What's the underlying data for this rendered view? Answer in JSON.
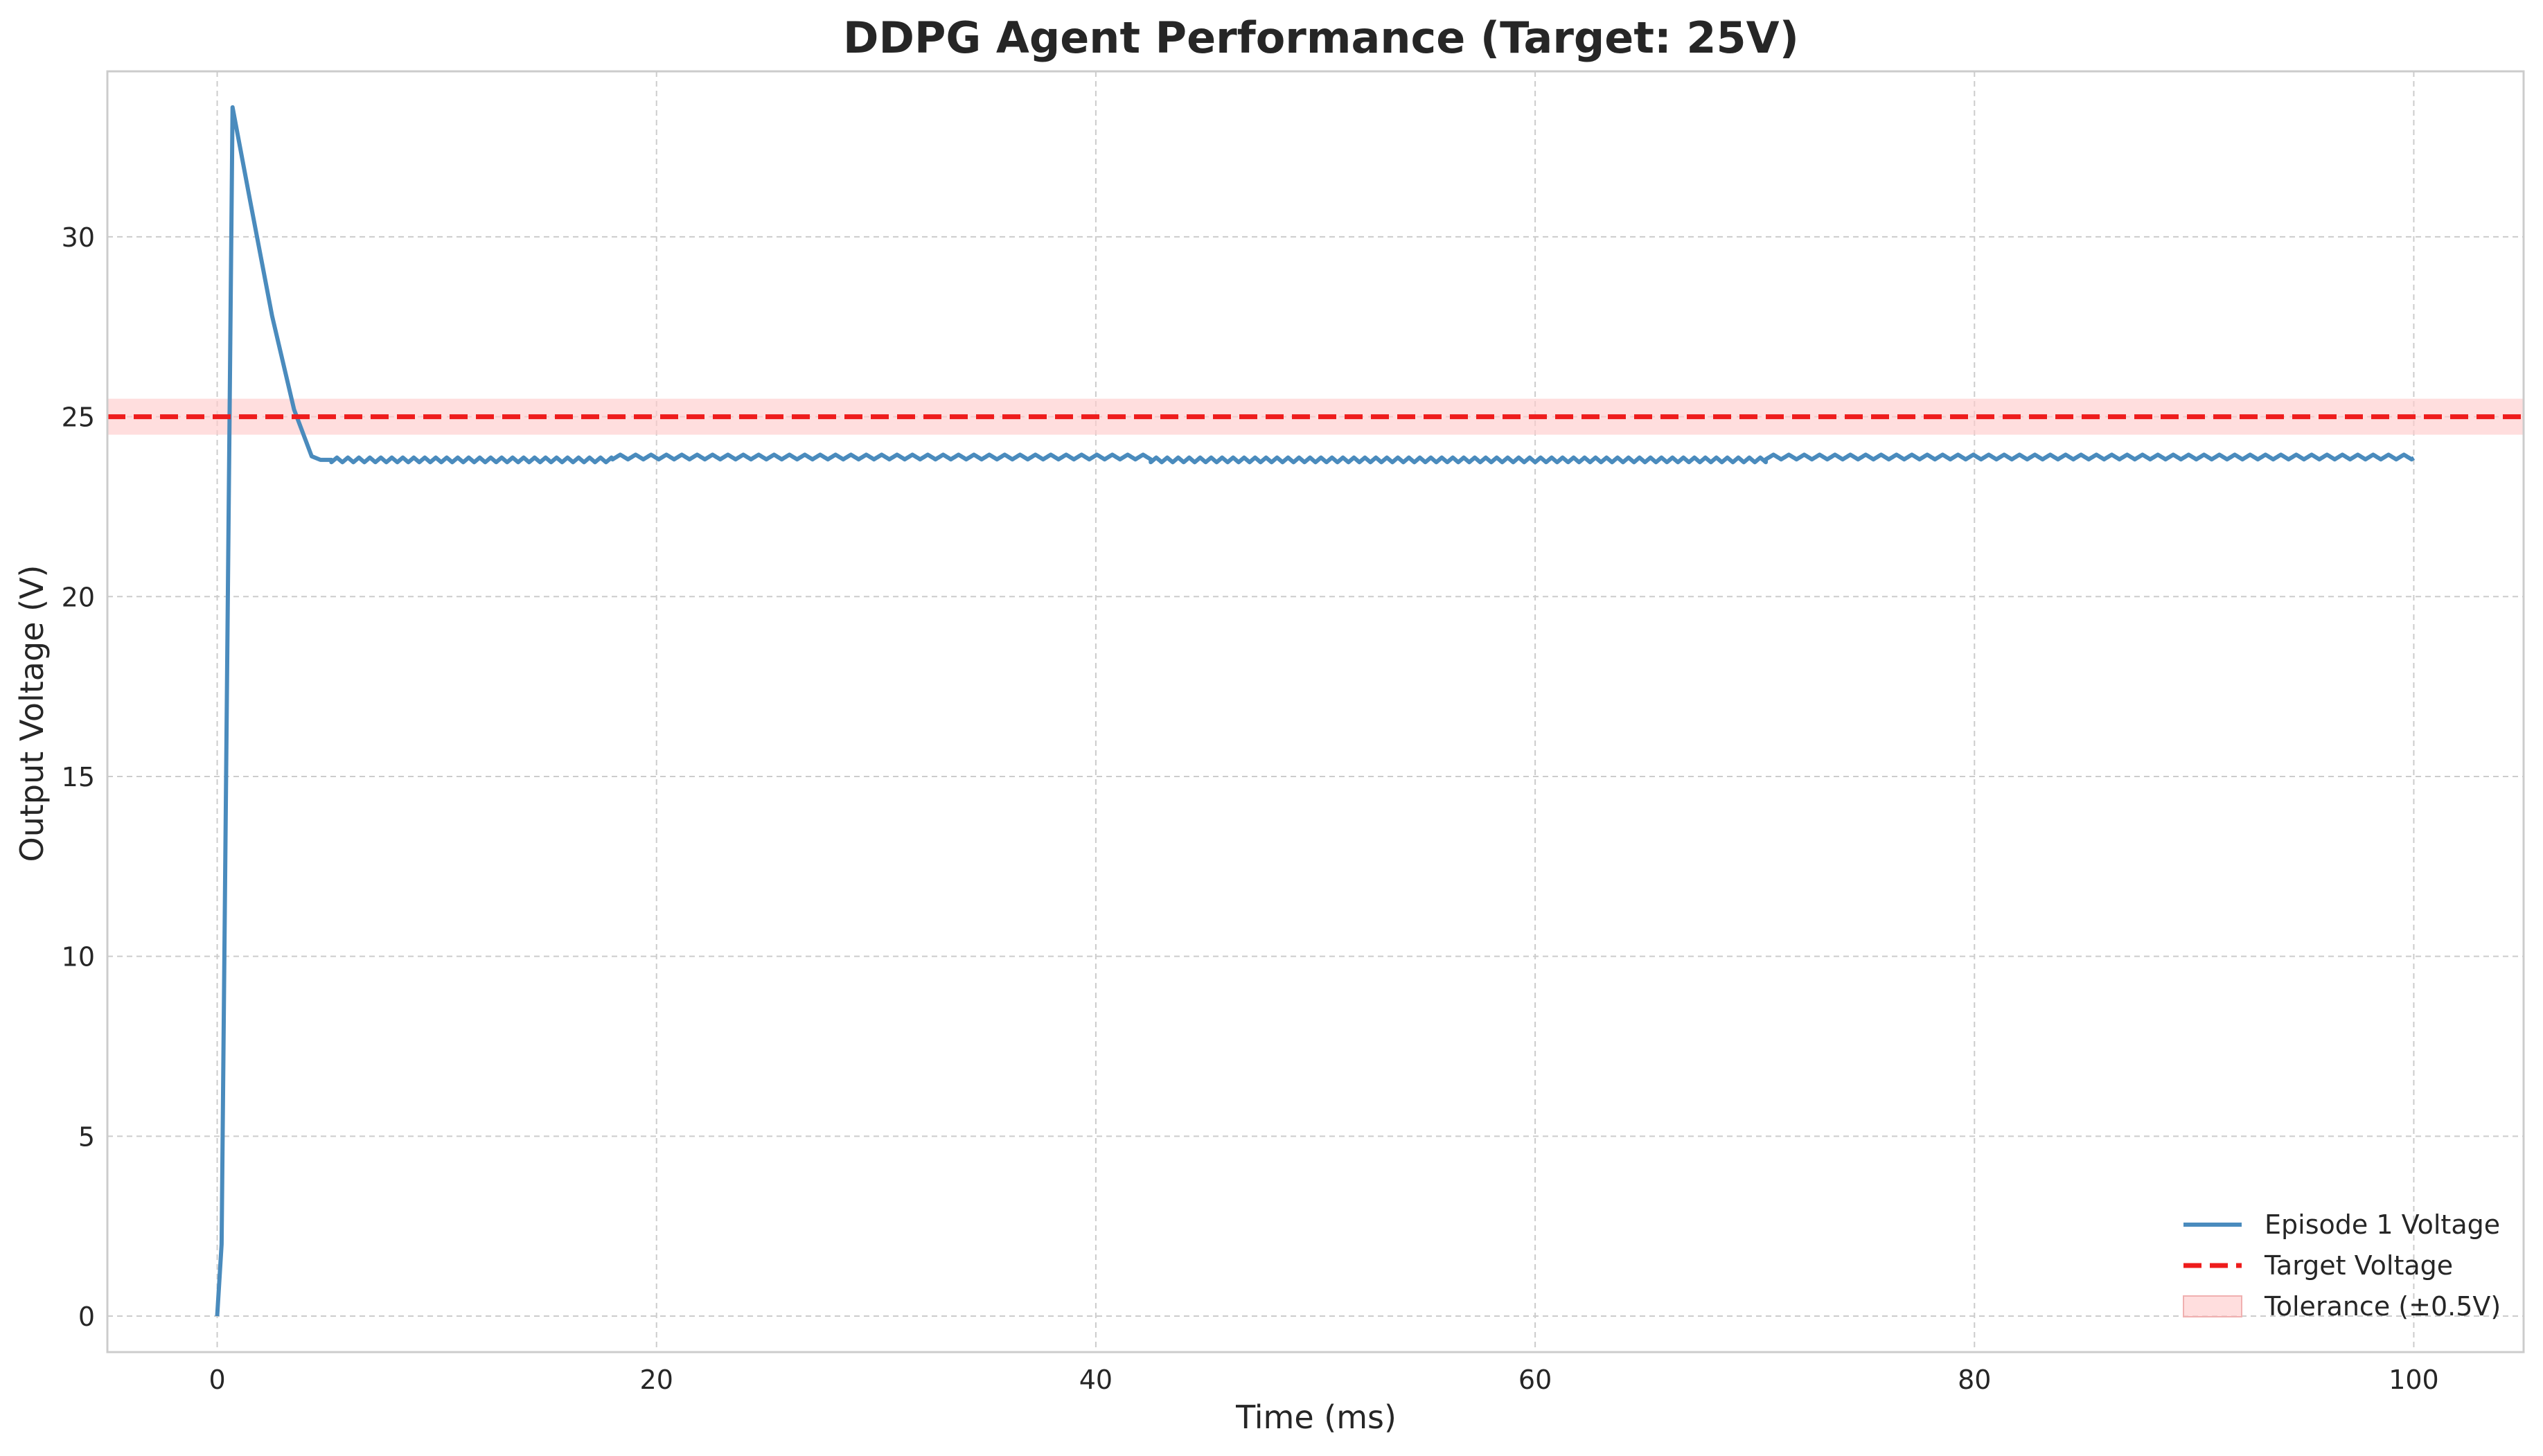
{
  "chart_data": {
    "type": "line",
    "title": "DDPG Agent Performance (Target: 25V)",
    "xlabel": "Time (ms)",
    "ylabel": "Output Voltage (V)",
    "xlim": [
      -5,
      105
    ],
    "ylim": [
      -1,
      34.6
    ],
    "xticks": [
      0,
      20,
      40,
      60,
      80,
      100
    ],
    "yticks": [
      0,
      5,
      10,
      15,
      20,
      25,
      30
    ],
    "grid": true,
    "legend_position": "lower-right",
    "target": 25,
    "tolerance": 0.5,
    "series": [
      {
        "name": "Episode 1 Voltage",
        "color": "#4a8bbd",
        "segments": [
          {
            "x": [
              0,
              0.2,
              0.7,
              1.5,
              2.5,
              3.5,
              4.3,
              4.7,
              5.2
            ],
            "y": [
              0,
              2,
              33.6,
              31.0,
              27.8,
              25.2,
              23.9,
              23.8,
              23.8
            ]
          },
          {
            "x_start": 5.2,
            "x_end": 18,
            "base": 23.8,
            "ripple": 0.13,
            "period": 0.5
          },
          {
            "x_start": 18,
            "x_end": 42.5,
            "base": 23.88,
            "ripple": 0.13,
            "period": 0.7
          },
          {
            "x_start": 42.5,
            "x_end": 70.5,
            "base": 23.8,
            "ripple": 0.13,
            "period": 0.5
          },
          {
            "x_start": 70.5,
            "x_end": 100,
            "base": 23.88,
            "ripple": 0.13,
            "period": 0.7
          }
        ]
      },
      {
        "name": "Target Voltage",
        "color": "#ee1c1c",
        "y": 25,
        "x": [
          -5,
          105
        ]
      },
      {
        "name": "Tolerance (±0.5V)",
        "color": "#ffcccc",
        "y_range": [
          24.5,
          25.5
        ]
      }
    ]
  }
}
